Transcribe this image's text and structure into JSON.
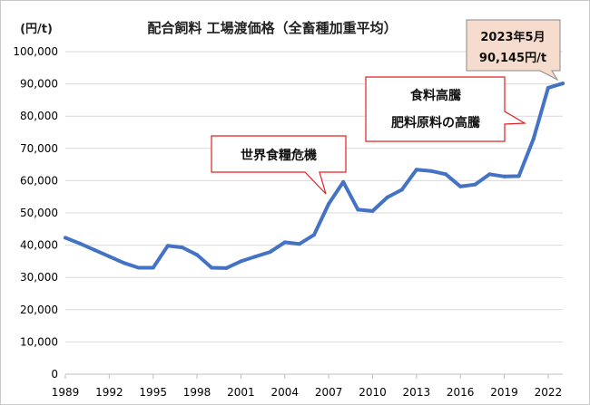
{
  "chart_data": {
    "type": "line",
    "title": "配合飼料 工場渡価格（全畜種加重平均）",
    "unit_label": "(円/t)",
    "ylim": [
      0,
      100000
    ],
    "y_ticks": [
      "0",
      "10,000",
      "20,000",
      "30,000",
      "40,000",
      "50,000",
      "60,000",
      "70,000",
      "80,000",
      "90,000",
      "100,000"
    ],
    "y_tick_values": [
      0,
      10000,
      20000,
      30000,
      40000,
      50000,
      60000,
      70000,
      80000,
      90000,
      100000
    ],
    "xlim": [
      1989,
      2023
    ],
    "x_ticks": [
      "1989",
      "1992",
      "1995",
      "1998",
      "2001",
      "2004",
      "2007",
      "2010",
      "2013",
      "2016",
      "2019",
      "2022"
    ],
    "x_tick_values": [
      1989,
      1992,
      1995,
      1998,
      2001,
      2004,
      2007,
      2010,
      2013,
      2016,
      2019,
      2022
    ],
    "grid": "horizontal",
    "series": [
      {
        "color": "#4472c4",
        "x": [
          1989,
          1990,
          1991,
          1992,
          1993,
          1994,
          1995,
          1996,
          1997,
          1998,
          1999,
          2000,
          2001,
          2002,
          2003,
          2004,
          2005,
          2006,
          2007,
          2008,
          2009,
          2010,
          2011,
          2012,
          2013,
          2014,
          2015,
          2016,
          2017,
          2018,
          2019,
          2020,
          2021,
          2022,
          2023
        ],
        "values": [
          42300,
          40500,
          38500,
          36500,
          34500,
          33000,
          33000,
          39800,
          39300,
          37000,
          33000,
          32900,
          35000,
          36500,
          37900,
          40900,
          40400,
          43200,
          52800,
          59600,
          51000,
          50600,
          54800,
          57200,
          63400,
          63000,
          62000,
          58200,
          58800,
          62000,
          61300,
          61400,
          73000,
          88800,
          90145
        ]
      }
    ],
    "annotations": [
      {
        "text": "世界食糧危機"
      },
      {
        "lines": [
          "食料高騰",
          "肥料原料の高騰"
        ]
      },
      {
        "lines": [
          "2023年5月",
          "90,145円/t"
        ]
      }
    ]
  }
}
